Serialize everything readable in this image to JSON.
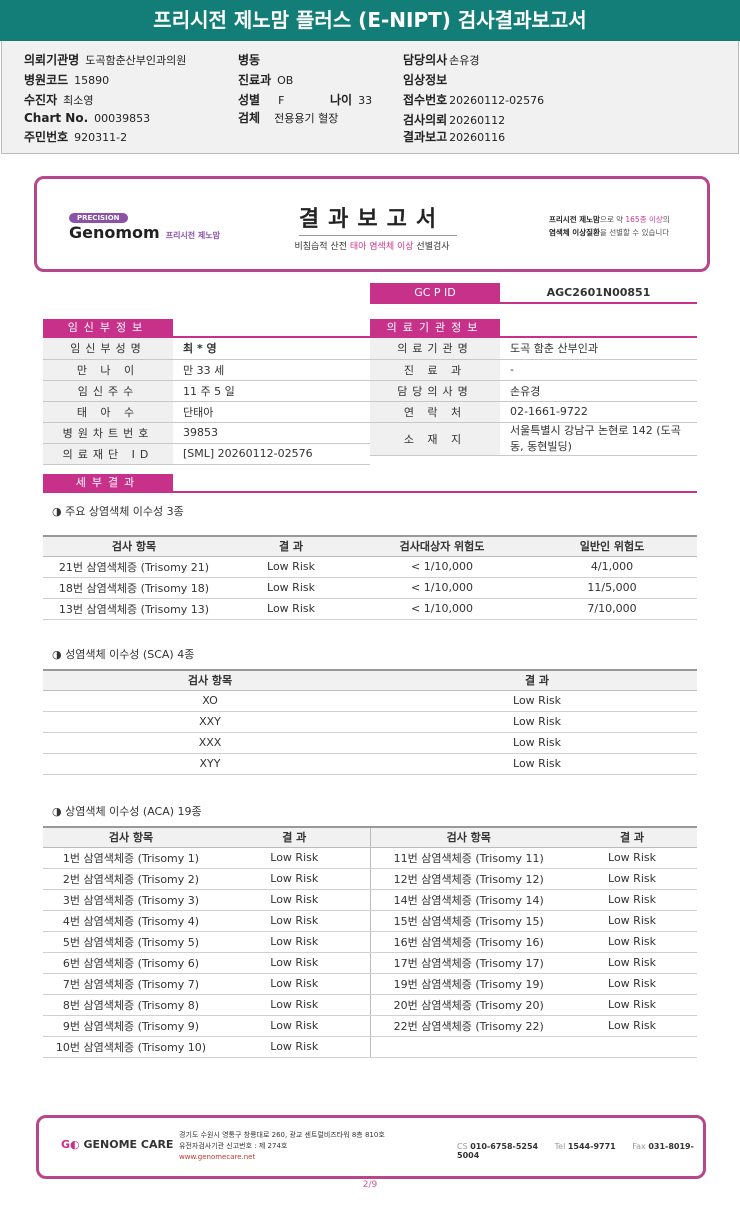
{
  "header": {
    "title": "프리시전 제노맘 플러스 (E-NIPT) 검사결과보고서"
  },
  "info": {
    "institution_label": "의뢰기관명",
    "institution": "도곡함춘산부인과의원",
    "hospital_code_label": "병원코드",
    "hospital_code": "15890",
    "patient_label": "수진자",
    "patient": "최소영",
    "chart_label": "Chart No.",
    "chart": "00039853",
    "resident_label": "주민번호",
    "resident": "920311-2",
    "ward_label": "병동",
    "dept_label": "진료과",
    "dept": "OB",
    "sex_label": "성별",
    "sex": "F",
    "age_label": "나이",
    "age": "33",
    "specimen_label": "검체",
    "specimen": "전용용기 혈장",
    "doctor_label": "담당의사",
    "doctor": "손유경",
    "clinical_label": "임상정보",
    "receipt_label": "접수번호",
    "receipt": "20260112-02576",
    "request_label": "검사의뢰",
    "request": "20260112",
    "report_label": "결과보고",
    "report": "20260116"
  },
  "banner": {
    "pill": "PRECISION",
    "brand": "Genomom",
    "brand_sub": "프리시전 제노맘",
    "title": "결과보고서",
    "sub_a": "비침습적 산전 ",
    "sub_b": "태아 염색체 이상",
    "sub_c": " 선별검사",
    "right_a": "프리시전 제노맘",
    "right_b": "으로 약 ",
    "right_c": "165종 이상",
    "right_d": "의",
    "right_e": "염색체 이상질환",
    "right_f": "을 선별할 수 있습니다"
  },
  "gcpid": {
    "label": "GC P ID",
    "value": "AGC2601N00851"
  },
  "pregnant": {
    "title": "임신부정보",
    "rows": [
      {
        "label": "임신부성명",
        "value": "최 * 영"
      },
      {
        "label": "만 나 이",
        "value": "만 33 세"
      },
      {
        "label": "임신주수",
        "value": "11 주 5 일"
      },
      {
        "label": "태 아 수",
        "value": "단태아"
      },
      {
        "label": "병원차트번호",
        "value": "39853"
      },
      {
        "label": "의료재단 ID",
        "value": "[SML] 20260112-02576"
      }
    ]
  },
  "medical": {
    "title": "의료기관정보",
    "rows": [
      {
        "label": "의료기관명",
        "value": "도곡 함춘 산부인과"
      },
      {
        "label": "진 료 과",
        "value": "-"
      },
      {
        "label": "담당의사명",
        "value": "손유경"
      },
      {
        "label": "연 락 처",
        "value": "02-1661-9722"
      },
      {
        "label": "소 재 지",
        "value": "서울특별시 강남구 논현로 142 (도곡동, 동현빌딩)"
      }
    ]
  },
  "detail": {
    "title": "세부결과"
  },
  "major": {
    "caption": "◑ 주요 상염색체 이수성 3종",
    "headers": [
      "검사 항목",
      "결 과",
      "검사대상자 위험도",
      "일반인 위험도"
    ],
    "rows": [
      [
        "21번 삼염색체증 (Trisomy 21)",
        "Low Risk",
        "< 1/10,000",
        "4/1,000"
      ],
      [
        "18번 삼염색체증 (Trisomy 18)",
        "Low Risk",
        "< 1/10,000",
        "11/5,000"
      ],
      [
        "13번 삼염색체증 (Trisomy 13)",
        "Low Risk",
        "< 1/10,000",
        "7/10,000"
      ]
    ]
  },
  "sca": {
    "caption": "◑ 성염색체 이수성 (SCA) 4종",
    "headers": [
      "검사 항목",
      "결 과"
    ],
    "rows": [
      [
        "XO",
        "Low Risk"
      ],
      [
        "XXY",
        "Low Risk"
      ],
      [
        "XXX",
        "Low Risk"
      ],
      [
        "XYY",
        "Low Risk"
      ]
    ]
  },
  "aca": {
    "caption": "◑ 상염색체 이수성 (ACA) 19종",
    "headers": [
      "검사 항목",
      "결 과",
      "검사 항목",
      "결 과"
    ],
    "rows": [
      [
        "1번 삼염색체증 (Trisomy 1)",
        "Low Risk",
        "11번 삼염색체증 (Trisomy 11)",
        "Low Risk"
      ],
      [
        "2번 삼염색체증 (Trisomy 2)",
        "Low Risk",
        "12번 삼염색체증 (Trisomy 12)",
        "Low Risk"
      ],
      [
        "3번 삼염색체증 (Trisomy 3)",
        "Low Risk",
        "14번 삼염색체증 (Trisomy 14)",
        "Low Risk"
      ],
      [
        "4번 삼염색체증 (Trisomy 4)",
        "Low Risk",
        "15번 삼염색체증 (Trisomy 15)",
        "Low Risk"
      ],
      [
        "5번 삼염색체증 (Trisomy 5)",
        "Low Risk",
        "16번 삼염색체증 (Trisomy 16)",
        "Low Risk"
      ],
      [
        "6번 삼염색체증 (Trisomy 6)",
        "Low Risk",
        "17번 삼염색체증 (Trisomy 17)",
        "Low Risk"
      ],
      [
        "7번 삼염색체증 (Trisomy 7)",
        "Low Risk",
        "19번 삼염색체증 (Trisomy 19)",
        "Low Risk"
      ],
      [
        "8번 삼염색체증 (Trisomy 8)",
        "Low Risk",
        "20번 삼염색체증 (Trisomy 20)",
        "Low Risk"
      ],
      [
        "9번 삼염색체증 (Trisomy 9)",
        "Low Risk",
        "22번 삼염색체증 (Trisomy 22)",
        "Low Risk"
      ],
      [
        "10번 삼염색체증 (Trisomy 10)",
        "Low Risk",
        "",
        ""
      ]
    ]
  },
  "footer": {
    "logo": "GENOME CARE",
    "address": "경기도 수원시 영통구 창룡대로 260, 광교 센트럴비즈타워 8층 810호",
    "license": "유전자검사기관 신고번호 : 제 274호",
    "url": "www.genomecare.net",
    "cs_label": "CS",
    "cs": "010-6758-5254",
    "tel_label": "Tel",
    "tel": "1544-9771",
    "fax_label": "Fax",
    "fax": "031-8019-5004"
  },
  "page": "2/9"
}
